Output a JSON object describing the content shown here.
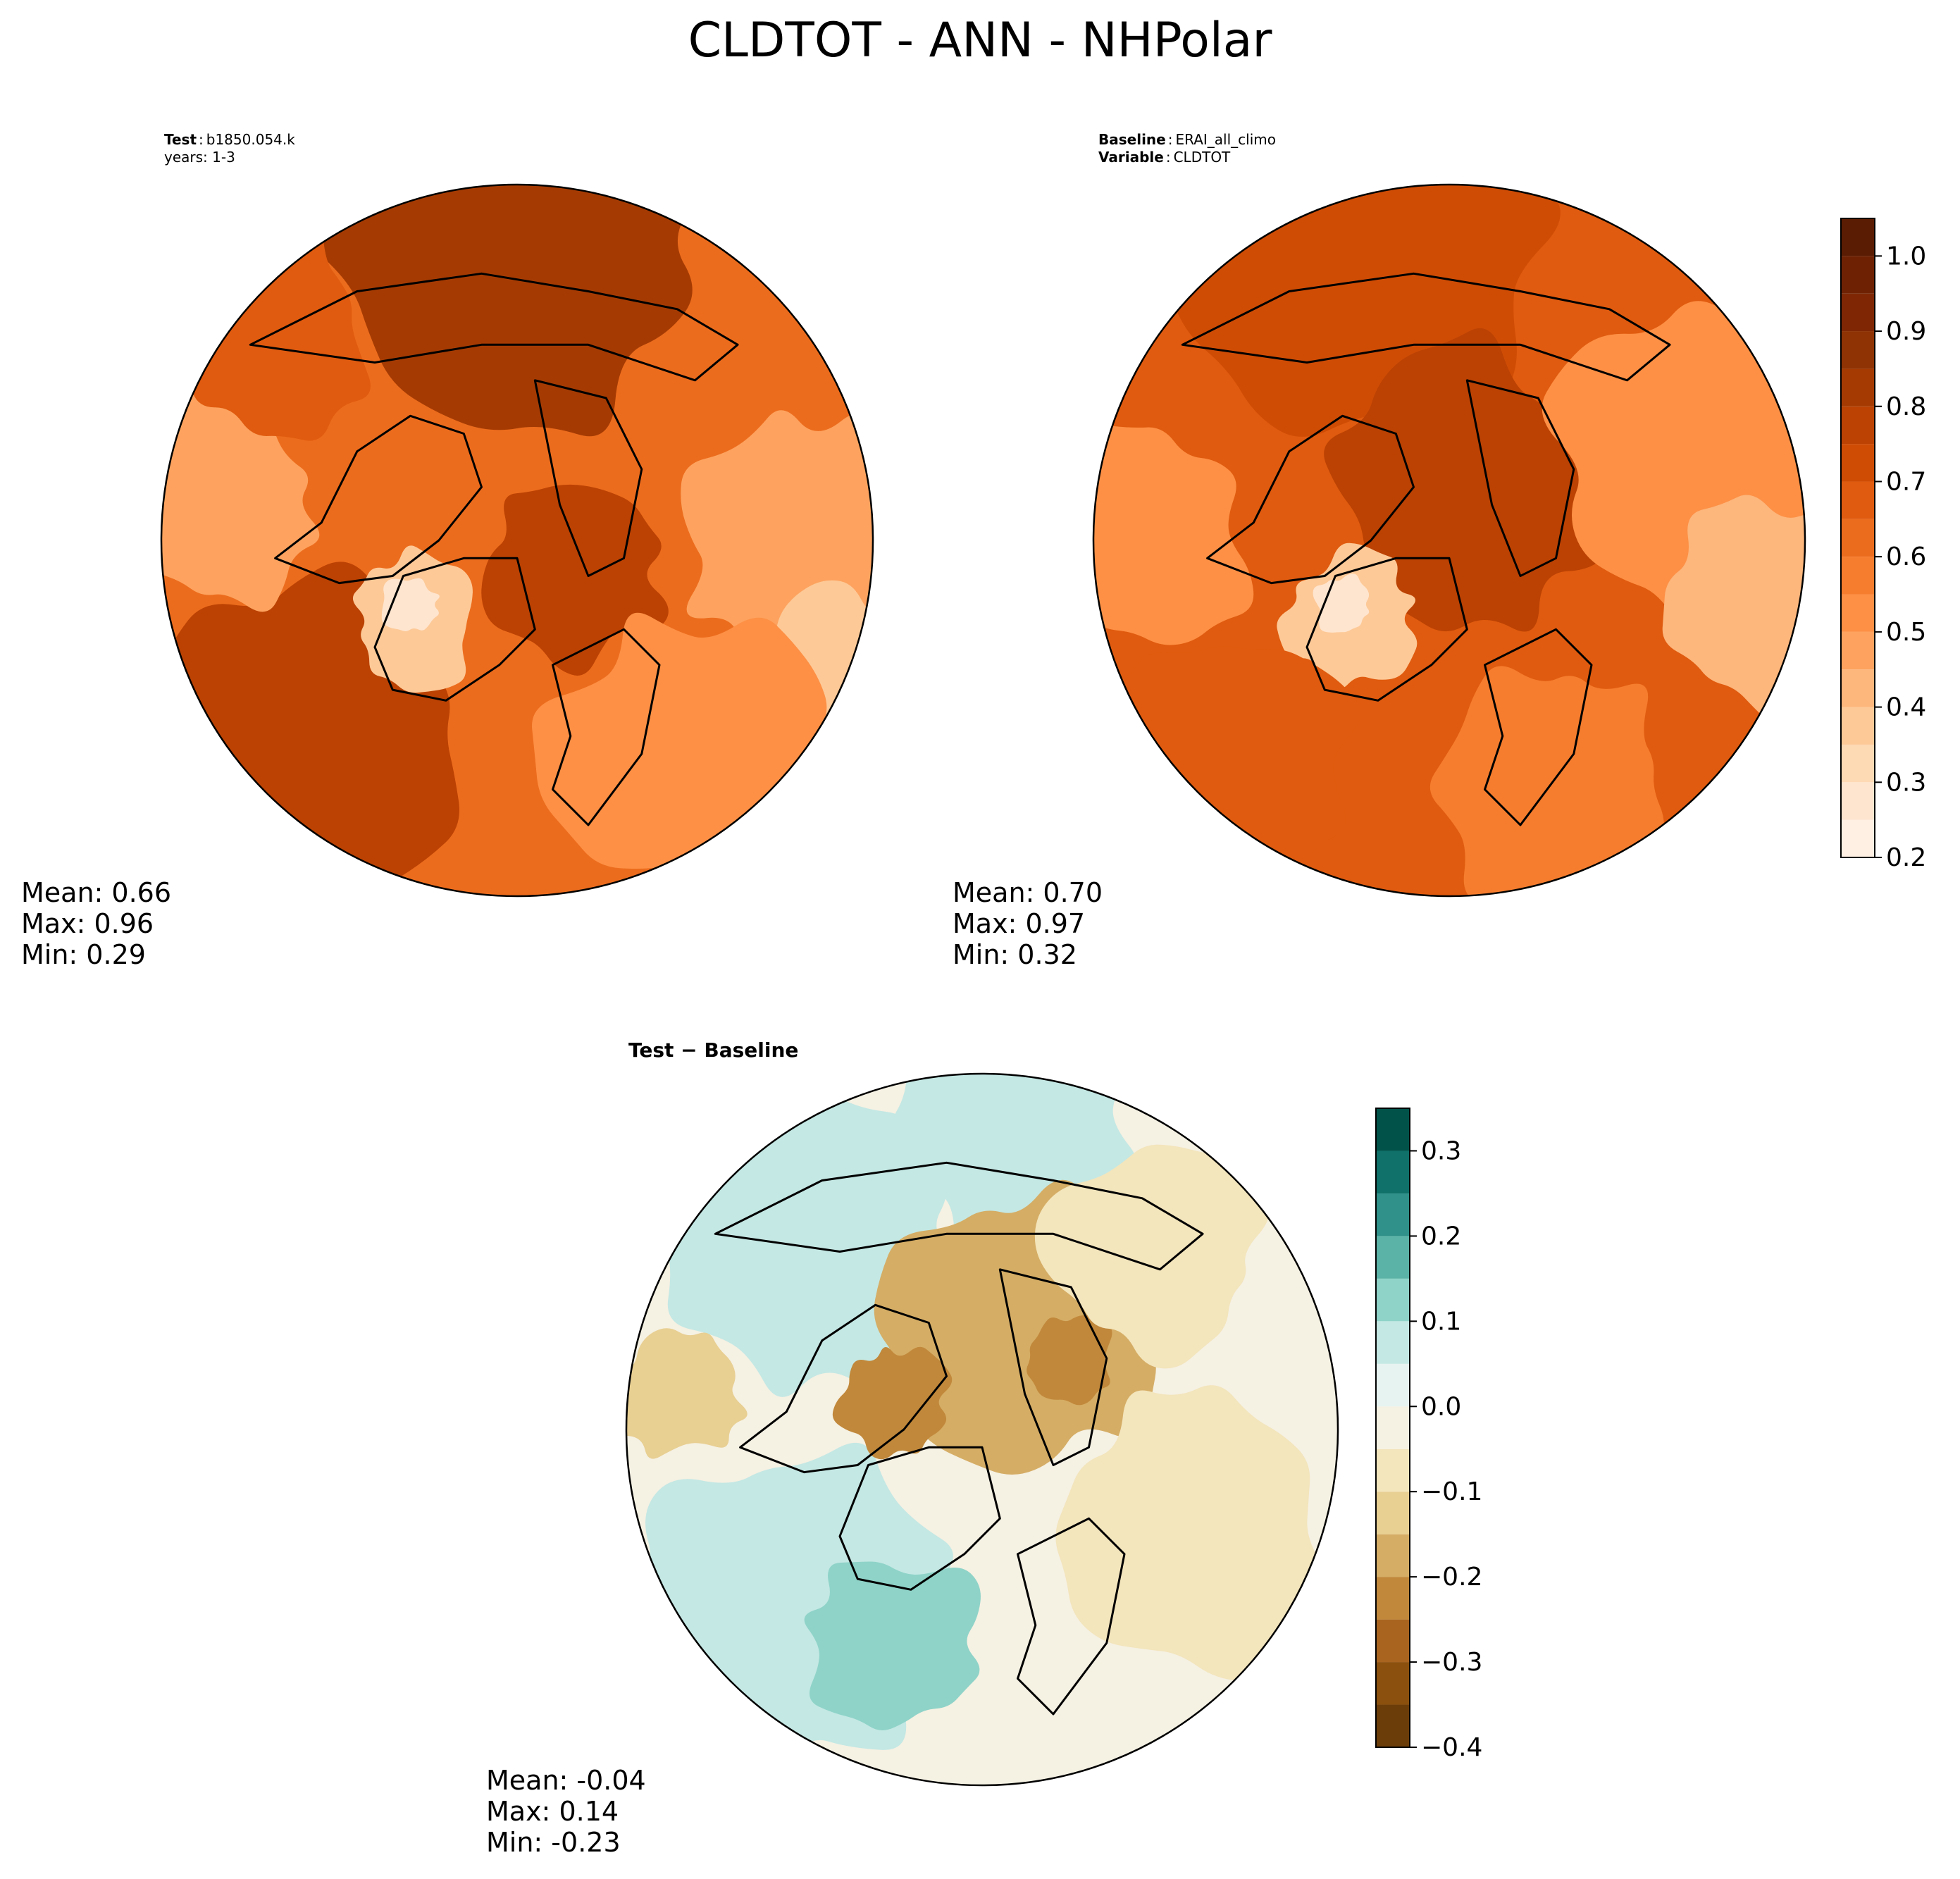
{
  "title": "CLDTOT - ANN - NHPolar",
  "panels": [
    {
      "id": "test",
      "header": [
        {
          "key": "Test",
          "value": "b1850.054.k"
        },
        {
          "key": "",
          "value": "years: 1-3"
        }
      ],
      "stats": [
        "Mean:  0.66",
        "Max:  0.96",
        "Min:  0.29"
      ]
    },
    {
      "id": "baseline",
      "header": [
        {
          "key": "Baseline",
          "value": "ERAI_all_climo"
        },
        {
          "key": "Variable",
          "value": "CLDTOT"
        }
      ],
      "stats": [
        "Mean:  0.70",
        "Max:  0.97",
        "Min:  0.32"
      ]
    },
    {
      "id": "diff",
      "header": [
        {
          "key": "Test − Baseline",
          "value": ""
        }
      ],
      "stats": [
        "Mean: -0.04",
        "Max:  0.14",
        "Min: -0.23"
      ]
    }
  ],
  "colorbars": [
    {
      "id": "field-colorbar",
      "range": [
        0.2,
        1.05
      ],
      "levels": [
        0.2,
        0.25,
        0.3,
        0.35,
        0.4,
        0.45,
        0.5,
        0.55,
        0.6,
        0.65,
        0.7,
        0.75,
        0.8,
        0.85,
        0.9,
        0.95,
        1.0,
        1.05
      ],
      "ticks": [
        "0.2",
        "0.3",
        "0.4",
        "0.5",
        "0.6",
        "0.7",
        "0.8",
        "0.9",
        "1.0"
      ],
      "colors": [
        "#fff0e3",
        "#fee5cf",
        "#fdd9b4",
        "#fdc997",
        "#fdb67c",
        "#fda35f",
        "#fd9045",
        "#f67d2e",
        "#ec6c1d",
        "#e05b0f",
        "#cf4c05",
        "#bb4203",
        "#a53b03",
        "#8f3304",
        "#7f2704",
        "#6f2203",
        "#5a1c02"
      ]
    },
    {
      "id": "diff-colorbar",
      "range": [
        -0.4,
        0.35
      ],
      "levels": [
        -0.4,
        -0.35,
        -0.3,
        -0.25,
        -0.2,
        -0.15,
        -0.1,
        -0.05,
        0.0,
        0.05,
        0.1,
        0.15,
        0.2,
        0.25,
        0.3,
        0.35
      ],
      "ticks": [
        "−0.4",
        "−0.3",
        "−0.2",
        "−0.1",
        "0.0",
        "0.1",
        "0.2",
        "0.3"
      ],
      "colors": [
        "#6b3d08",
        "#8b500d",
        "#a96520",
        "#c1883b",
        "#d5ad65",
        "#e8cf92",
        "#f3e5bc",
        "#f5f1e3",
        "#e6f3f1",
        "#c4e8e4",
        "#8fd3c8",
        "#5bb3a7",
        "#2f9189",
        "#0f7169",
        "#01534a"
      ]
    }
  ],
  "chart_data": {
    "type": "heatmap",
    "projection": "north-polar-stereographic",
    "variable": "CLDTOT",
    "season": "ANN",
    "region": "NHPolar",
    "maps": [
      {
        "name": "Test",
        "case": "b1850.054.k",
        "years": "1-3",
        "mean": 0.66,
        "max": 0.96,
        "min": 0.29,
        "colorbar": "field-colorbar"
      },
      {
        "name": "Baseline",
        "case": "ERAI_all_climo",
        "mean": 0.7,
        "max": 0.97,
        "min": 0.32,
        "colorbar": "field-colorbar"
      },
      {
        "name": "Test − Baseline",
        "mean": -0.04,
        "max": 0.14,
        "min": -0.23,
        "colorbar": "diff-colorbar"
      }
    ]
  }
}
